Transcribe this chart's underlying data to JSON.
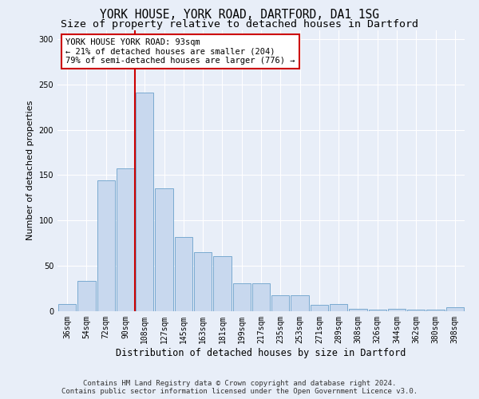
{
  "title": "YORK HOUSE, YORK ROAD, DARTFORD, DA1 1SG",
  "subtitle": "Size of property relative to detached houses in Dartford",
  "xlabel": "Distribution of detached houses by size in Dartford",
  "ylabel": "Number of detached properties",
  "categories": [
    "36sqm",
    "54sqm",
    "72sqm",
    "90sqm",
    "108sqm",
    "127sqm",
    "145sqm",
    "163sqm",
    "181sqm",
    "199sqm",
    "217sqm",
    "235sqm",
    "253sqm",
    "271sqm",
    "289sqm",
    "308sqm",
    "326sqm",
    "344sqm",
    "362sqm",
    "380sqm",
    "398sqm"
  ],
  "values": [
    8,
    33,
    144,
    157,
    241,
    135,
    82,
    65,
    61,
    31,
    31,
    18,
    18,
    7,
    8,
    3,
    2,
    3,
    2,
    2,
    4
  ],
  "bar_color": "#c8d8ee",
  "bar_edge_color": "#7aaad0",
  "vline_color": "#cc0000",
  "annotation_text": "YORK HOUSE YORK ROAD: 93sqm\n← 21% of detached houses are smaller (204)\n79% of semi-detached houses are larger (776) →",
  "annotation_box_color": "white",
  "annotation_box_edge_color": "#cc0000",
  "ylim": [
    0,
    310
  ],
  "yticks": [
    0,
    50,
    100,
    150,
    200,
    250,
    300
  ],
  "footer_line1": "Contains HM Land Registry data © Crown copyright and database right 2024.",
  "footer_line2": "Contains public sector information licensed under the Open Government Licence v3.0.",
  "bg_color": "#e8eef8",
  "grid_color": "#ffffff",
  "title_fontsize": 10.5,
  "subtitle_fontsize": 9.5,
  "xlabel_fontsize": 8.5,
  "ylabel_fontsize": 8,
  "tick_fontsize": 7,
  "annotation_fontsize": 7.5,
  "footer_fontsize": 6.5
}
